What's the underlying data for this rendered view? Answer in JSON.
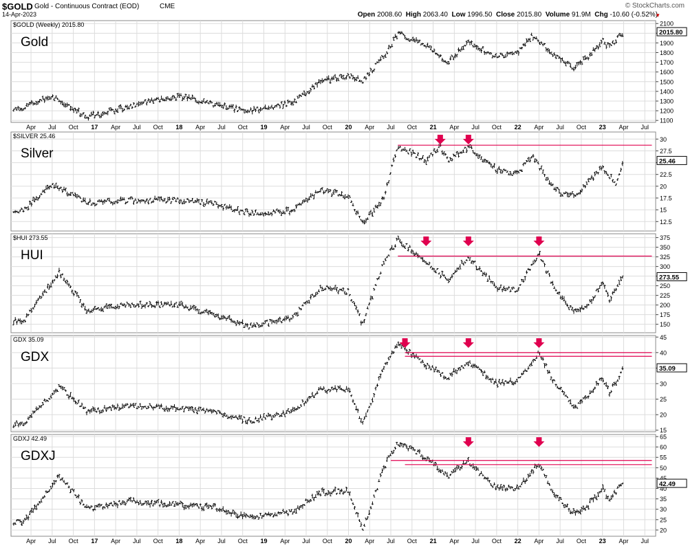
{
  "header": {
    "symbol": "$GOLD",
    "description": "Gold - Continuous Contract (EOD)",
    "exchange": "CME",
    "date": "14-Apr-2023",
    "watermark": "© StockCharts.com",
    "open_label": "Open",
    "open": "2008.60",
    "high_label": "High",
    "high": "2063.40",
    "low_label": "Low",
    "low": "1996.50",
    "close_label": "Close",
    "close": "2015.80",
    "volume_label": "Volume",
    "volume": "91.9M",
    "chg_label": "Chg",
    "chg": "-10.60 (-0.52%)"
  },
  "colors": {
    "resistance": "#e0004f",
    "bars": "#000000",
    "grid": "#dcdcdc"
  },
  "chart_data": [
    {
      "type": "ohlc",
      "name_label": "$GOLD (Weekly) 2015.80",
      "title": "Gold",
      "ylim": [
        1080,
        2130
      ],
      "yticks": [
        1100,
        1200,
        1300,
        1400,
        1500,
        1600,
        1700,
        1800,
        1900,
        2000,
        2100
      ],
      "last": "2015.80",
      "last_value": 2015.8,
      "x": [
        "2016-03",
        "2016-07",
        "2016-12",
        "2017-06",
        "2018-01",
        "2018-06",
        "2018-11",
        "2019-05",
        "2019-09",
        "2020-01",
        "2020-03",
        "2020-06",
        "2020-08",
        "2020-12",
        "2021-03",
        "2021-06",
        "2021-10",
        "2022-01",
        "2022-03",
        "2022-05",
        "2022-07",
        "2022-09",
        "2022-11",
        "2023-01",
        "2023-02",
        "2023-04"
      ],
      "y": [
        1230,
        1355,
        1135,
        1250,
        1350,
        1260,
        1195,
        1285,
        1500,
        1560,
        1510,
        1760,
        2000,
        1880,
        1700,
        1900,
        1760,
        1800,
        1980,
        1850,
        1730,
        1640,
        1760,
        1920,
        1850,
        2015
      ],
      "resistance": [],
      "arrows": []
    },
    {
      "type": "ohlc",
      "name_label": "$SILVER 25.46",
      "title": "Silver",
      "ylim": [
        10.5,
        31.5
      ],
      "yticks": [
        12.5,
        15.0,
        17.5,
        20.0,
        22.5,
        25.0,
        27.5,
        30.0
      ],
      "last": "25.46",
      "last_value": 25.46,
      "x": [
        "2016-03",
        "2016-07",
        "2016-12",
        "2017-06",
        "2018-01",
        "2018-06",
        "2018-11",
        "2019-05",
        "2019-09",
        "2020-01",
        "2020-03",
        "2020-06",
        "2020-08",
        "2020-12",
        "2021-02",
        "2021-03",
        "2021-06",
        "2021-10",
        "2022-01",
        "2022-03",
        "2022-05",
        "2022-07",
        "2022-09",
        "2022-11",
        "2023-01",
        "2023-03",
        "2023-04"
      ],
      "y": [
        15.0,
        20.5,
        16.5,
        17.0,
        17.0,
        16.3,
        14.2,
        14.8,
        19.0,
        18.0,
        12.0,
        17.5,
        28.5,
        25.5,
        28.5,
        25.5,
        28.3,
        23.5,
        22.5,
        26.5,
        22.0,
        18.5,
        18.0,
        21.0,
        24.0,
        20.5,
        25.4
      ],
      "resistance": [
        {
          "value": 28.7,
          "from": "2020-08",
          "to": "2023-08"
        }
      ],
      "arrows": [
        "2021-02",
        "2021-06"
      ]
    },
    {
      "type": "ohlc",
      "name_label": "$HUI 273.55",
      "title": "HUI",
      "ylim": [
        128,
        385
      ],
      "yticks": [
        150,
        175,
        200,
        225,
        250,
        275,
        300,
        325,
        350,
        375
      ],
      "last": "273.55",
      "last_value": 273.55,
      "x": [
        "2016-03",
        "2016-08",
        "2016-12",
        "2017-06",
        "2018-01",
        "2018-06",
        "2018-11",
        "2019-05",
        "2019-09",
        "2020-01",
        "2020-03",
        "2020-06",
        "2020-08",
        "2020-12",
        "2021-03",
        "2021-06",
        "2021-10",
        "2022-01",
        "2022-04",
        "2022-06",
        "2022-09",
        "2022-11",
        "2023-01",
        "2023-02",
        "2023-04"
      ],
      "y": [
        160,
        285,
        185,
        200,
        200,
        175,
        145,
        165,
        245,
        235,
        150,
        310,
        370,
        315,
        265,
        325,
        245,
        240,
        335,
        250,
        180,
        200,
        260,
        215,
        280
      ],
      "resistance": [
        {
          "value": 327,
          "from": "2020-08",
          "to": "2023-08"
        }
      ],
      "arrows": [
        "2020-12",
        "2021-06",
        "2022-04"
      ]
    },
    {
      "type": "ohlc",
      "name_label": "GDX 35.09",
      "title": "GDX",
      "ylim": [
        14.5,
        45.5
      ],
      "yticks": [
        15,
        20,
        25,
        30,
        35,
        40,
        45
      ],
      "last": "35.09",
      "last_value": 35.09,
      "x": [
        "2016-03",
        "2016-08",
        "2016-12",
        "2017-06",
        "2018-01",
        "2018-06",
        "2018-11",
        "2019-05",
        "2019-09",
        "2020-01",
        "2020-03",
        "2020-06",
        "2020-08",
        "2020-12",
        "2021-03",
        "2021-06",
        "2021-10",
        "2022-01",
        "2022-04",
        "2022-06",
        "2022-09",
        "2022-11",
        "2023-01",
        "2023-02",
        "2023-04"
      ],
      "y": [
        17,
        29,
        21,
        23,
        22,
        21,
        18,
        21,
        28,
        28,
        17,
        35,
        43,
        36,
        32,
        37,
        30,
        31,
        40,
        31,
        22,
        26,
        32,
        27,
        35
      ],
      "resistance": [
        {
          "value": 40,
          "from": "2020-09",
          "to": "2023-08"
        },
        {
          "value": 38.8,
          "from": "2020-09",
          "to": "2023-08"
        }
      ],
      "arrows": [
        "2020-09",
        "2021-06",
        "2022-04"
      ]
    },
    {
      "type": "ohlc",
      "name_label": "GDXJ 42.49",
      "title": "GDXJ",
      "ylim": [
        17,
        66
      ],
      "yticks": [
        20,
        25,
        30,
        35,
        40,
        45,
        50,
        55,
        60,
        65
      ],
      "last": "42.49",
      "last_value": 42.49,
      "x": [
        "2016-03",
        "2016-08",
        "2016-12",
        "2017-06",
        "2018-01",
        "2018-06",
        "2018-11",
        "2019-05",
        "2019-09",
        "2020-01",
        "2020-03",
        "2020-06",
        "2020-08",
        "2020-12",
        "2021-03",
        "2021-06",
        "2021-10",
        "2022-01",
        "2022-04",
        "2022-06",
        "2022-09",
        "2022-11",
        "2023-01",
        "2023-02",
        "2023-04"
      ],
      "y": [
        24,
        46,
        30,
        34,
        32,
        31,
        26,
        29,
        38,
        39,
        20,
        50,
        62,
        55,
        46,
        53,
        40,
        40,
        52,
        38,
        28,
        32,
        40,
        35,
        43
      ],
      "resistance": [
        {
          "value": 53.5,
          "from": "2020-07",
          "to": "2023-08"
        },
        {
          "value": 51.5,
          "from": "2020-09",
          "to": "2023-08"
        }
      ],
      "arrows": [
        "2021-06",
        "2022-04"
      ]
    }
  ],
  "x_axis": {
    "ticks": [
      {
        "label": "Apr",
        "date": "2016-04"
      },
      {
        "label": "Jul",
        "date": "2016-07"
      },
      {
        "label": "Oct",
        "date": "2016-10"
      },
      {
        "label": "17",
        "date": "2017-01"
      },
      {
        "label": "Apr",
        "date": "2017-04"
      },
      {
        "label": "Jul",
        "date": "2017-07"
      },
      {
        "label": "Oct",
        "date": "2017-10"
      },
      {
        "label": "18",
        "date": "2018-01"
      },
      {
        "label": "Apr",
        "date": "2018-04"
      },
      {
        "label": "Jul",
        "date": "2018-07"
      },
      {
        "label": "Oct",
        "date": "2018-10"
      },
      {
        "label": "19",
        "date": "2019-01"
      },
      {
        "label": "Apr",
        "date": "2019-04"
      },
      {
        "label": "Jul",
        "date": "2019-07"
      },
      {
        "label": "Oct",
        "date": "2019-10"
      },
      {
        "label": "20",
        "date": "2020-01"
      },
      {
        "label": "Apr",
        "date": "2020-04"
      },
      {
        "label": "Jul",
        "date": "2020-07"
      },
      {
        "label": "Oct",
        "date": "2020-10"
      },
      {
        "label": "21",
        "date": "2021-01"
      },
      {
        "label": "Apr",
        "date": "2021-04"
      },
      {
        "label": "Jul",
        "date": "2021-07"
      },
      {
        "label": "Oct",
        "date": "2021-10"
      },
      {
        "label": "22",
        "date": "2022-01"
      },
      {
        "label": "Apr",
        "date": "2022-04"
      },
      {
        "label": "Jul",
        "date": "2022-07"
      },
      {
        "label": "Oct",
        "date": "2022-10"
      },
      {
        "label": "23",
        "date": "2023-01"
      },
      {
        "label": "Apr",
        "date": "2023-04"
      },
      {
        "label": "Jul",
        "date": "2023-07"
      }
    ]
  }
}
